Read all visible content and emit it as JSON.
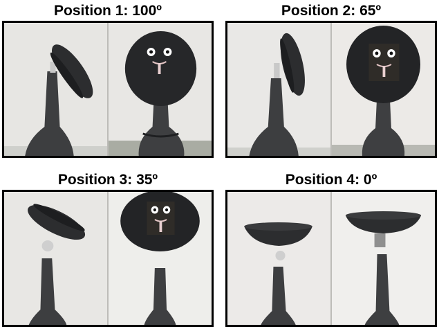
{
  "figure": {
    "panels": [
      {
        "caption": "Position 1: 100º",
        "tilt_deg": 100
      },
      {
        "caption": "Position 2: 65º",
        "tilt_deg": 65
      },
      {
        "caption": "Position 3: 35º",
        "tilt_deg": 35
      },
      {
        "caption": "Position 4: 0º",
        "tilt_deg": 0
      }
    ]
  }
}
